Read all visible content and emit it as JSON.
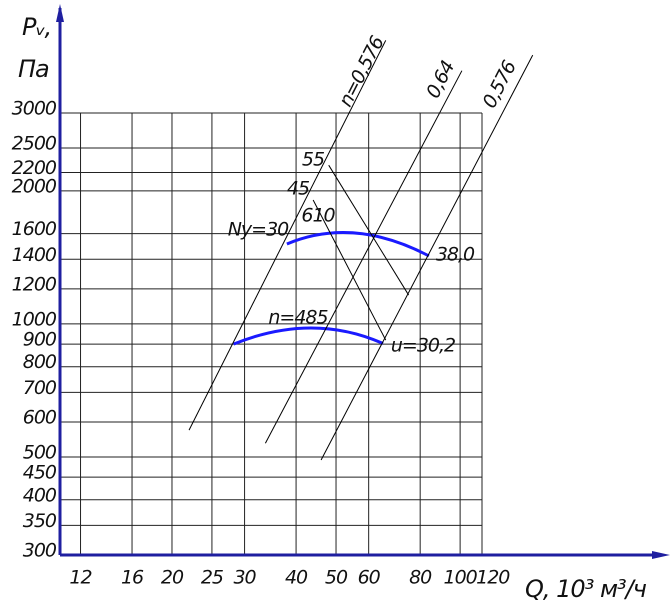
{
  "chart_data": {
    "type": "line",
    "ylabel": [
      "Pᵥ,",
      "Па"
    ],
    "xlabel": "Q, 10³ м³/ч",
    "xscale": "log",
    "yscale": "log",
    "grid": true,
    "xlim": [
      10.7,
      113
    ],
    "ylim": [
      300,
      3000
    ],
    "xticks": [
      12,
      16,
      20,
      25,
      30,
      40,
      50,
      60,
      80,
      100,
      120
    ],
    "yticks": [
      300,
      350,
      400,
      450,
      500,
      600,
      700,
      800,
      900,
      1000,
      1200,
      1400,
      1600,
      2000,
      2200,
      2500,
      3000
    ],
    "series": [
      {
        "color": "#1a1aff",
        "x": [
          38,
          55.8,
          84
        ],
        "values": [
          1516,
          1605,
          1425
        ]
      },
      {
        "color": "#1a1aff",
        "x": [
          28.2,
          43.3,
          65
        ],
        "values": [
          900,
          979,
          903
        ]
      },
      {
        "color": "#000000",
        "x": [
          22,
          66
        ],
        "values": [
          575,
          4380
        ]
      },
      {
        "color": "#000000",
        "x": [
          33.7,
          101
        ],
        "values": [
          537,
          3740
        ]
      },
      {
        "color": "#000000",
        "x": [
          46,
          150
        ],
        "values": [
          492,
          4056
        ]
      },
      {
        "color": "#000000",
        "x": [
          48,
          75
        ],
        "values": [
          2286,
          1162
        ]
      },
      {
        "color": "#000000",
        "x": [
          44,
          66
        ],
        "values": [
          1907,
          919
        ]
      }
    ],
    "annotations": [
      "n=0,576",
      "0,64",
      "0,576",
      "55",
      "45",
      "Ny=30",
      "610",
      "38,0",
      "n=485",
      "u=30,2"
    ]
  }
}
